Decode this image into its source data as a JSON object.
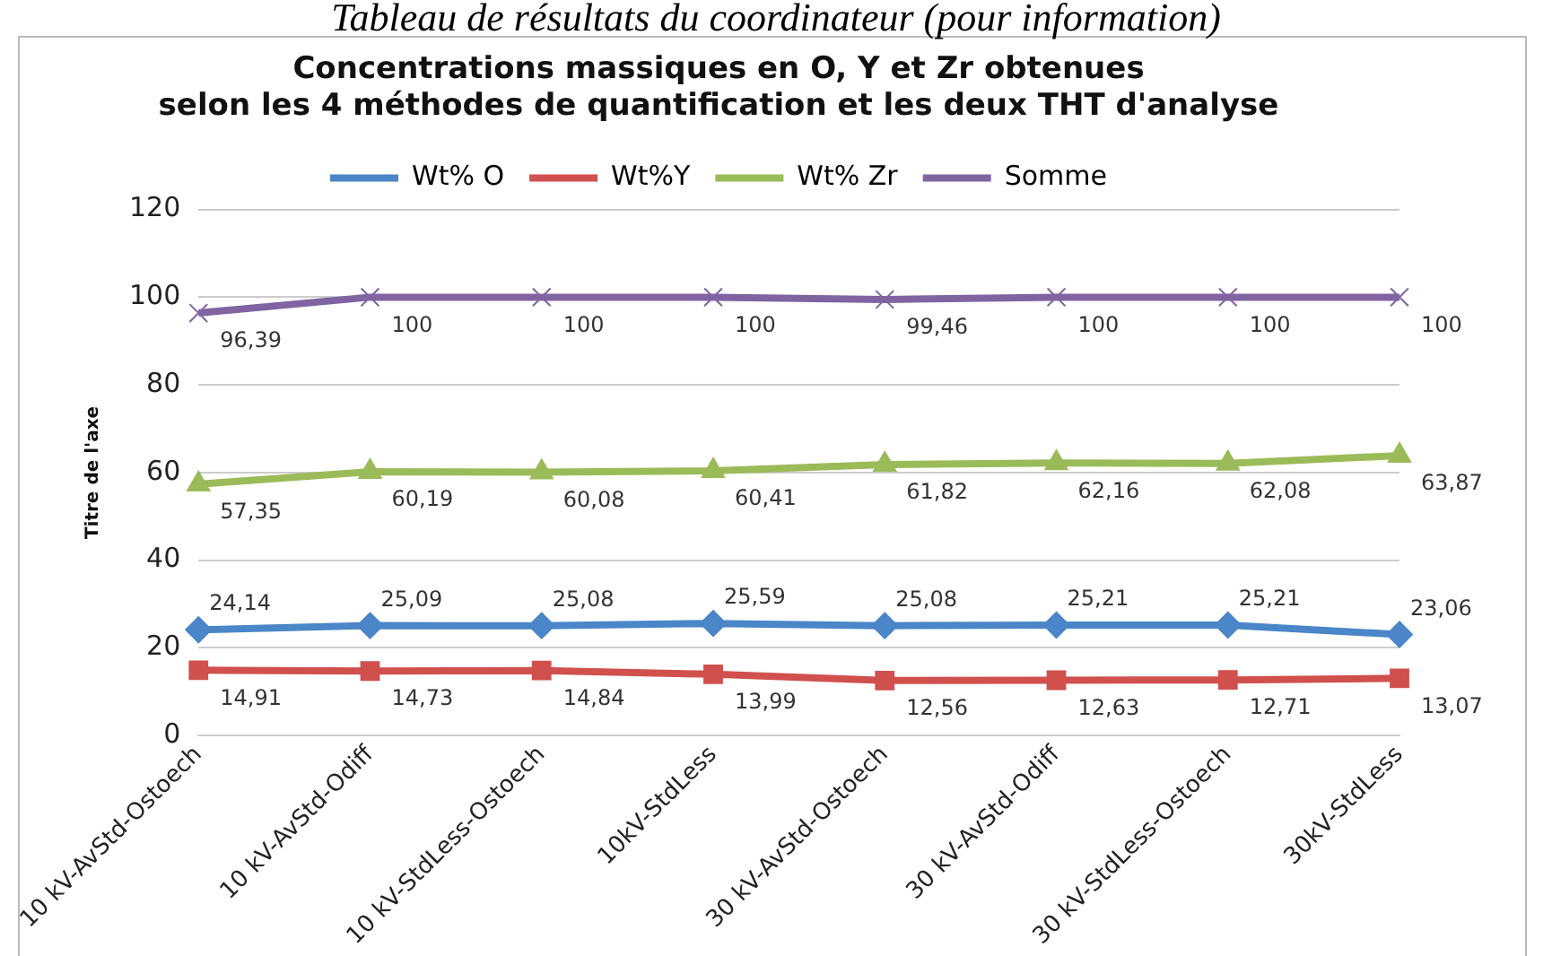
{
  "chart_data": {
    "type": "line",
    "title": [
      "Concentrations massiques en O, Y et Zr obtenues",
      "selon les 4 méthodes de quantification et les deux THT d'analyse"
    ],
    "ylabel": "Titre de l'axe",
    "annotations": [
      "Tableau de résultats du coordinateur (pour information)"
    ],
    "categories": [
      "10 kV-AvStd-Ostoech",
      "10 kV-AvStd-Odiff",
      "10 kV-StdLess-Ostoech",
      "10kV-StdLess",
      "30 kV-AvStd-Ostoech",
      "30 kV-AvStd-Odiff",
      "30 kV-StdLess-Ostoech",
      "30kV-StdLess"
    ],
    "series": [
      {
        "name": "Wt% O",
        "color": "#4a86c8",
        "marker": "diamond",
        "values": [
          24.14,
          25.09,
          25.08,
          25.59,
          25.08,
          25.21,
          25.21,
          23.06
        ],
        "value_labels": [
          "24,14",
          "25,09",
          "25,08",
          "25,59",
          "25,08",
          "25,21",
          "25,21",
          "23,06"
        ]
      },
      {
        "name": "Wt%Y",
        "color": "#d0504d",
        "marker": "square",
        "values": [
          14.91,
          14.73,
          14.84,
          13.99,
          12.56,
          12.63,
          12.71,
          13.07
        ],
        "value_labels": [
          "14,91",
          "14,73",
          "14,84",
          "13,99",
          "12,56",
          "12,63",
          "12,71",
          "13,07"
        ]
      },
      {
        "name": "Wt% Zr",
        "color": "#9bbb59",
        "marker": "triangle",
        "values": [
          57.35,
          60.19,
          60.08,
          60.41,
          61.82,
          62.16,
          62.08,
          63.87
        ],
        "value_labels": [
          "57,35",
          "60,19",
          "60,08",
          "60,41",
          "61,82",
          "62,16",
          "62,08",
          "63,87"
        ]
      },
      {
        "name": "Somme",
        "color": "#8064a2",
        "marker": "cross",
        "values": [
          96.39,
          100,
          100,
          100,
          99.46,
          100,
          100,
          100
        ],
        "value_labels": [
          "96,39",
          "100",
          "100",
          "100",
          "99,46",
          "100",
          "100",
          "100"
        ]
      }
    ],
    "ylim": [
      0,
      120
    ],
    "yticks": [
      0,
      20,
      40,
      60,
      80,
      100,
      120
    ],
    "grid": "y",
    "legend": "top"
  }
}
